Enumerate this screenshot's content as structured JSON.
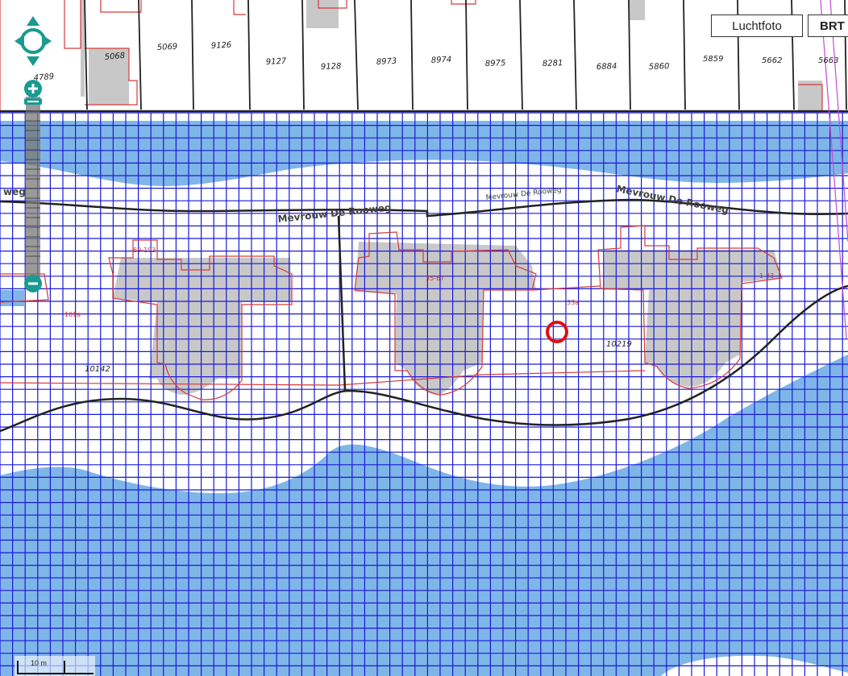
{
  "layer_switcher": {
    "luchtfoto_label": "Luchtfoto",
    "brt_label": "BRT"
  },
  "map": {
    "parcels_top": [
      "4789",
      "5068",
      "5069",
      "9126",
      "9127",
      "9128",
      "8973",
      "8974",
      "8975",
      "8281",
      "6884",
      "5860",
      "5859",
      "5662",
      "5663"
    ],
    "parcels_main": [
      "10142",
      "10219"
    ],
    "house_numbers": [
      "69-103",
      "35-67",
      "1-33",
      "33a",
      "101a"
    ],
    "street_names": [
      "Mevrouw De Rooweg",
      "Mevrouw De Rooweg",
      "Mevrouw De Rooweg",
      "weg"
    ],
    "colors": {
      "water": "#7fb6e8",
      "grid": "#1a1ad6",
      "parcel": "#d63a3a",
      "building": "#c8c8c8",
      "road": "#222222",
      "marker": "#e01010",
      "controls": "#1a9a90"
    }
  },
  "controls": {
    "pan_icon": "pan-arrows-icon",
    "zoom_in_icon": "plus-icon",
    "zoom_out_icon": "minus-icon"
  },
  "scale_bar": {
    "label": "10 m"
  }
}
